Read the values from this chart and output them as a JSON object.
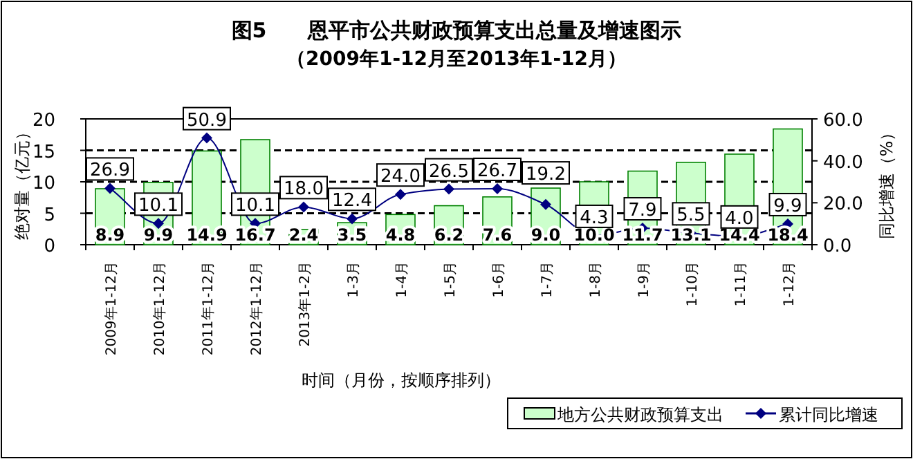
{
  "chart_data": {
    "type": "bar",
    "title": "图5　　恩平市公共财政预算支出总量及增速图示",
    "subtitle": "（2009年1-12月至2013年1-12月）",
    "xlabel": "时间（月份，按顺序排列）",
    "ylabel": "绝对量（亿元）",
    "y2label": "同比增速（%）",
    "categories": [
      "2009年1-12月",
      "2010年1-12月",
      "2011年1-12月",
      "2012年1-12月",
      "2013年1-2月",
      "1-3月",
      "1-4月",
      "1-5月",
      "1-6月",
      "1-7月",
      "1-8月",
      "1-9月",
      "1-10月",
      "1-11月",
      "1-12月"
    ],
    "series": [
      {
        "name": "地方公共财政预算支出",
        "color": "#ccffcc",
        "values": [
          8.9,
          9.9,
          14.9,
          16.7,
          2.4,
          3.5,
          4.8,
          6.2,
          7.6,
          9.0,
          10.0,
          11.7,
          13.1,
          14.4,
          18.4
        ],
        "value_labels": [
          "8.9",
          "9.9",
          "14.9",
          "16.7",
          "2.4",
          "3.5",
          "4.8",
          "6.2",
          "7.6",
          "9.0",
          "10.0",
          "11.7",
          "13.1",
          "14.4",
          "18.4"
        ]
      },
      {
        "name": "累计同比增速",
        "type": "line",
        "axis": "y2",
        "color": "#000080",
        "values": [
          26.9,
          10.1,
          50.9,
          10.1,
          18.0,
          12.4,
          24.0,
          26.5,
          26.7,
          19.2,
          4.3,
          7.9,
          5.5,
          4.0,
          9.9
        ],
        "value_labels": [
          "26.9",
          "10.1",
          "50.9",
          "10.1",
          "18.0",
          "12.4",
          "24.0",
          "26.5",
          "26.7",
          "19.2",
          "4.3",
          "7.9",
          "5.5",
          "4.0",
          "9.9"
        ]
      }
    ],
    "ylim": [
      0,
      20
    ],
    "yticks": [
      0,
      5,
      10,
      15,
      20
    ],
    "y2lim": [
      0,
      60
    ],
    "y2ticks": [
      {
        "value": 0,
        "label": "0.0"
      },
      {
        "value": 20,
        "label": "20.0"
      },
      {
        "value": 40,
        "label": "40.0"
      },
      {
        "value": 60,
        "label": "60.0"
      }
    ],
    "grid": "y",
    "legend": "bottom",
    "marker": "diamond"
  }
}
